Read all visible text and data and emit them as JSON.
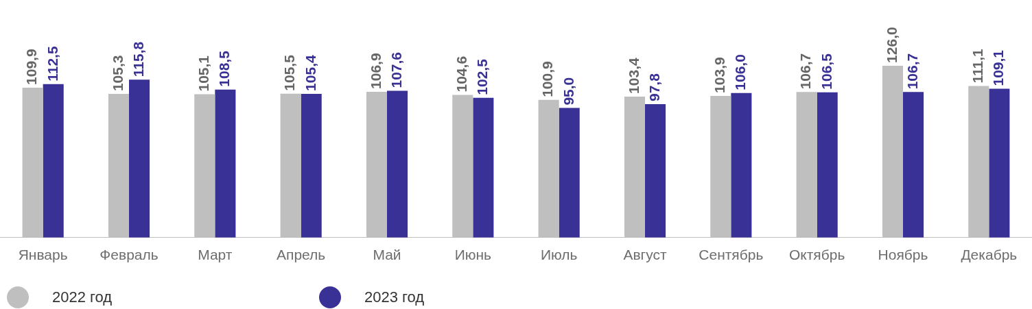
{
  "chart_data": {
    "type": "bar",
    "categories": [
      "Январь",
      "Февраль",
      "Март",
      "Апрель",
      "Май",
      "Июнь",
      "Июль",
      "Август",
      "Сентябрь",
      "Октябрь",
      "Ноябрь",
      "Декабрь"
    ],
    "series": [
      {
        "name": "2022 год",
        "color": "#bfbfbf",
        "values": [
          109.9,
          105.3,
          105.1,
          105.5,
          106.9,
          104.6,
          100.9,
          103.4,
          103.9,
          106.7,
          126.0,
          111.1
        ],
        "value_labels": [
          "109,9",
          "105,3",
          "105,1",
          "105,5",
          "106,9",
          "104,6",
          "100,9",
          "103,4",
          "103,9",
          "106,7",
          "126,0",
          "111,1"
        ]
      },
      {
        "name": "2023 год",
        "color": "#3a3197",
        "values": [
          112.5,
          115.8,
          108.5,
          105.4,
          107.6,
          102.5,
          95.0,
          97.8,
          106.0,
          106.5,
          106.7,
          109.1
        ],
        "value_labels": [
          "112,5",
          "115,8",
          "108,5",
          "105,4",
          "107,6",
          "102,5",
          "95,0",
          "97,8",
          "106,0",
          "106,5",
          "106,7",
          "109,1"
        ]
      }
    ],
    "legend": "bottom left",
    "grid": false
  }
}
